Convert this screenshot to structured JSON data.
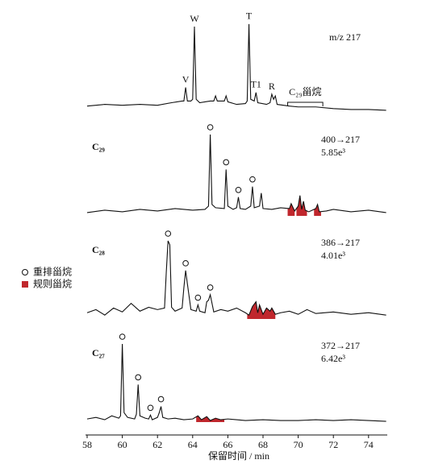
{
  "chart_data": {
    "type": "line",
    "xlabel": "保留时间 / min",
    "xlim": [
      58,
      75
    ],
    "xticks": [
      58,
      60,
      62,
      64,
      66,
      68,
      70,
      72,
      74
    ],
    "line_color": "#111111",
    "highlight_color": "#c0272d",
    "legend": [
      {
        "label": "重排甾烷",
        "marker": "circle"
      },
      {
        "label": "规则甾烷",
        "marker": "square"
      }
    ],
    "series": [
      {
        "annotation": [
          "m/z 217"
        ],
        "x": [
          58,
          59,
          60,
          61,
          62,
          62.8,
          63.4,
          63.5,
          63.6,
          63.7,
          63.9,
          64.0,
          64.1,
          64.2,
          64.4,
          65.0,
          65.2,
          65.3,
          65.4,
          65.8,
          65.9,
          66.0,
          66.5,
          67.0,
          67.1,
          67.2,
          67.3,
          67.5,
          67.6,
          67.7,
          68.2,
          68.4,
          68.5,
          68.6,
          68.7,
          68.8,
          69.5,
          70.0,
          71,
          72,
          73,
          74,
          75
        ],
        "values": [
          6,
          8,
          7,
          8,
          7,
          10,
          12,
          12,
          28,
          12,
          12,
          14,
          100,
          14,
          10,
          12,
          12,
          18,
          12,
          12,
          18,
          11,
          8,
          9,
          12,
          103,
          14,
          12,
          22,
          10,
          8,
          10,
          20,
          14,
          18,
          8,
          6,
          5,
          5,
          3,
          2,
          2,
          1
        ],
        "peak_labels": [
          {
            "text": "V",
            "x": 63.6
          },
          {
            "text": "W",
            "x": 64.1
          },
          {
            "text": "T",
            "x": 67.2
          },
          {
            "text": "T1",
            "x": 67.6
          },
          {
            "text": "R",
            "x": 68.5
          }
        ],
        "bracket": {
          "text": "C₂₉甾烷",
          "range": [
            69.4,
            71.4
          ]
        }
      },
      {
        "label": "C₂₉",
        "annotation": [
          "400→217",
          "5.85e³"
        ],
        "x": [
          58,
          59,
          60,
          61,
          62,
          63,
          64,
          64.7,
          64.9,
          65.0,
          65.1,
          65.3,
          65.8,
          65.9,
          66.0,
          66.3,
          66.5,
          66.6,
          66.7,
          67.0,
          67.3,
          67.4,
          67.5,
          67.8,
          67.9,
          68.0,
          68.5,
          69.0,
          69.5,
          69.6,
          69.8,
          70.0,
          70.1,
          70.2,
          70.3,
          70.4,
          70.6,
          71.0,
          71.1,
          71.2,
          71.6,
          72,
          73,
          74,
          75
        ],
        "values": [
          4,
          7,
          5,
          8,
          6,
          9,
          7,
          8,
          12,
          100,
          14,
          10,
          9,
          57,
          12,
          8,
          10,
          23,
          9,
          8,
          12,
          36,
          10,
          12,
          28,
          9,
          8,
          10,
          9,
          15,
          6,
          12,
          25,
          8,
          18,
          7,
          5,
          9,
          14,
          5,
          6,
          8,
          5,
          7,
          4
        ],
        "marked_peaks": [
          65.0,
          65.9,
          66.6,
          67.4
        ],
        "highlight": [
          [
            69.4,
            69.8
          ],
          [
            69.9,
            70.5
          ],
          [
            70.9,
            71.3
          ]
        ]
      },
      {
        "label": "C₂₈",
        "annotation": [
          "386→217",
          "4.01e³"
        ],
        "x": [
          58,
          58.5,
          59,
          59.5,
          60,
          60.5,
          61,
          61.5,
          62,
          62.4,
          62.5,
          62.6,
          62.7,
          62.8,
          63.0,
          63.4,
          63.5,
          63.6,
          63.7,
          63.9,
          64.2,
          64.3,
          64.4,
          64.7,
          64.8,
          64.9,
          65.0,
          65.2,
          65.6,
          66.0,
          66.5,
          67.0,
          67.2,
          67.4,
          67.6,
          67.7,
          67.8,
          68.0,
          68.2,
          68.4,
          68.5,
          68.7,
          69,
          69.5,
          70,
          70.5,
          71,
          72,
          73,
          74,
          75
        ],
        "values": [
          8,
          12,
          5,
          14,
          9,
          20,
          10,
          15,
          12,
          14,
          60,
          100,
          95,
          15,
          10,
          14,
          40,
          62,
          45,
          12,
          10,
          18,
          10,
          8,
          22,
          24,
          31,
          9,
          12,
          10,
          14,
          8,
          5,
          16,
          22,
          8,
          18,
          6,
          14,
          10,
          14,
          6,
          8,
          10,
          6,
          12,
          7,
          9,
          6,
          8,
          5
        ],
        "marked_peaks": [
          62.6,
          63.6,
          64.3,
          65.0
        ],
        "highlight": [
          [
            67.1,
            68.7
          ]
        ]
      },
      {
        "label": "C₂₇",
        "annotation": [
          "372→217",
          "6.42e³"
        ],
        "x": [
          58,
          58.5,
          59,
          59.4,
          59.8,
          59.9,
          60.0,
          60.1,
          60.3,
          60.7,
          60.8,
          60.9,
          61.0,
          61.3,
          61.5,
          61.6,
          61.7,
          62.0,
          62.1,
          62.2,
          62.3,
          62.6,
          63,
          63.5,
          64,
          64.3,
          64.5,
          64.8,
          65.0,
          65.3,
          65.6,
          66,
          66.5,
          67,
          68,
          69,
          70,
          71,
          72,
          73,
          74,
          75
        ],
        "values": [
          4,
          6,
          3,
          8,
          5,
          8,
          100,
          12,
          6,
          4,
          10,
          48,
          8,
          5,
          4,
          9,
          3,
          6,
          12,
          20,
          6,
          4,
          5,
          3,
          4,
          8,
          3,
          7,
          2,
          5,
          3,
          4,
          3,
          2,
          3,
          2,
          2,
          3,
          2,
          3,
          2,
          1
        ],
        "marked_peaks": [
          60.0,
          60.9,
          61.6,
          62.2
        ],
        "highlight": [
          [
            64.2,
            65.8
          ]
        ]
      }
    ]
  }
}
